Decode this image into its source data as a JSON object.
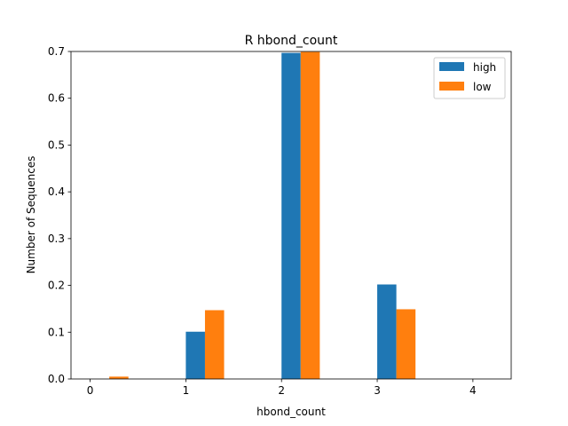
{
  "chart_data": {
    "type": "bar",
    "title": "R hbond_count",
    "xlabel": "hbond_count",
    "ylabel": "Number of Sequences",
    "x": [
      0,
      1,
      2,
      3,
      4
    ],
    "xticks": [
      "0",
      "1",
      "2",
      "3",
      "4"
    ],
    "xlim": [
      -0.2,
      4.4
    ],
    "ylim": [
      0,
      0.7
    ],
    "yticks": [
      "0.0",
      "0.1",
      "0.2",
      "0.3",
      "0.4",
      "0.5",
      "0.6",
      "0.7"
    ],
    "series": [
      {
        "name": "high",
        "color": "#1f77b4",
        "offset": 1,
        "values": [
          0.0,
          0.101,
          0.697,
          0.202,
          0.0
        ]
      },
      {
        "name": "low",
        "color": "#ff7f0e",
        "offset": 1,
        "values": [
          0.005,
          0.147,
          0.699,
          0.149,
          0.0
        ]
      }
    ],
    "grid": false,
    "legend": "top-right"
  }
}
